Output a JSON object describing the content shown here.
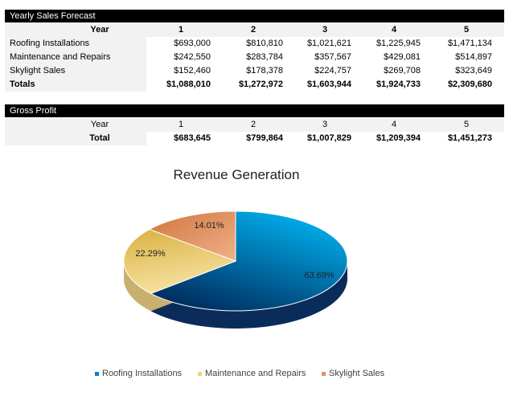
{
  "sales": {
    "title": "Yearly Sales Forecast",
    "year_label": "Year",
    "years": [
      "1",
      "2",
      "3",
      "4",
      "5"
    ],
    "rows": [
      {
        "label": "Roofing Installations",
        "values": [
          "$693,000",
          "$810,810",
          "$1,021,621",
          "$1,225,945",
          "$1,471,134"
        ]
      },
      {
        "label": "Maintenance and Repairs",
        "values": [
          "$242,550",
          "$283,784",
          "$357,567",
          "$429,081",
          "$514,897"
        ]
      },
      {
        "label": "Skylight Sales",
        "values": [
          "$152,460",
          "$178,378",
          "$224,757",
          "$269,708",
          "$323,649"
        ]
      }
    ],
    "totals": {
      "label": "Totals",
      "values": [
        "$1,088,010",
        "$1,272,972",
        "$1,603,944",
        "$1,924,733",
        "$2,309,680"
      ]
    }
  },
  "gross": {
    "title": "Gross Profit",
    "year_label": "Year",
    "years": [
      "1",
      "2",
      "3",
      "4",
      "5"
    ],
    "total": {
      "label": "Total",
      "values": [
        "$683,645",
        "$799,864",
        "$1,007,829",
        "$1,209,394",
        "$1,451,273"
      ]
    }
  },
  "chart_data": {
    "type": "pie",
    "title": "Revenue Generation",
    "legend": "bottom",
    "categories": [
      "Roofing Installations",
      "Maintenance and Repairs",
      "Skylight Sales"
    ],
    "values": [
      63.69,
      22.29,
      14.01
    ],
    "labels": [
      "63.69%",
      "22.29%",
      "14.01%"
    ],
    "colors": [
      "#0a7fd0",
      "#ecd283",
      "#e0946a"
    ]
  }
}
